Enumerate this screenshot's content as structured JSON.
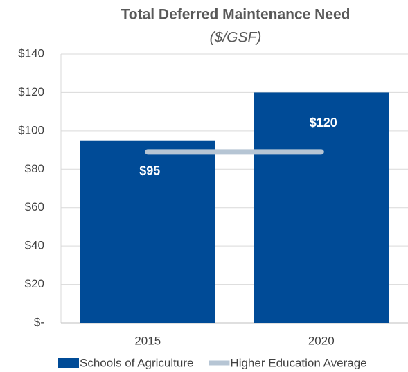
{
  "chart_data": {
    "type": "bar",
    "title": "Total Deferred Maintenance Need",
    "subtitle": "($/GSF)",
    "categories": [
      "2015",
      "2020"
    ],
    "series": [
      {
        "name": "Schools of Agriculture",
        "type": "bar",
        "color": "#004b97",
        "values": [
          95,
          120
        ],
        "value_labels": [
          "$95",
          "$120"
        ]
      },
      {
        "name": "Higher Education Average",
        "type": "line",
        "color": "#b6c5d4",
        "values": [
          89,
          89
        ]
      }
    ],
    "ylim": [
      0,
      140
    ],
    "yticks": [
      {
        "value": 0,
        "label": "$-"
      },
      {
        "value": 20,
        "label": "$20"
      },
      {
        "value": 40,
        "label": "$40"
      },
      {
        "value": 60,
        "label": "$60"
      },
      {
        "value": 80,
        "label": "$80"
      },
      {
        "value": 100,
        "label": "$100"
      },
      {
        "value": 120,
        "label": "$120"
      },
      {
        "value": 140,
        "label": "$140"
      }
    ],
    "grid": true,
    "legend": "bottom"
  }
}
